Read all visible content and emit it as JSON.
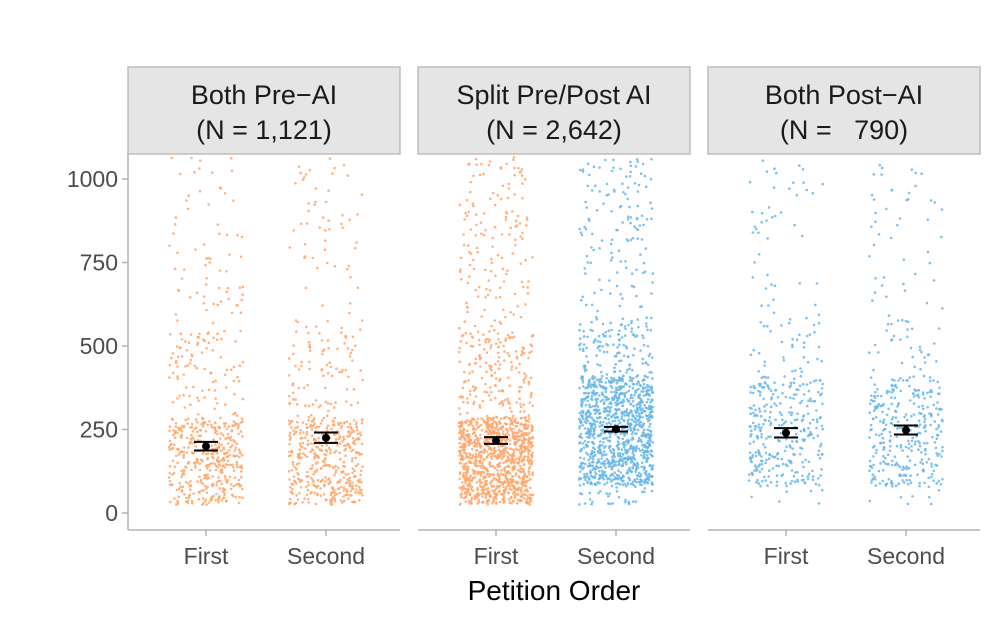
{
  "chart_data": {
    "type": "scatter",
    "subtype": "jittered strip plot with mean and error bars, faceted",
    "x_title": "Petition Order",
    "y_title": "",
    "ylim": [
      0,
      1070
    ],
    "y_ticks": [
      "0",
      "250",
      "500",
      "750",
      "1000"
    ],
    "y_tick_values": [
      0,
      250,
      500,
      750,
      1000
    ],
    "grid": false,
    "legend": "none",
    "colors": {
      "pre_ai": "#FFA76B",
      "post_ai": "#69B7E8",
      "mean": "#000000"
    },
    "facets": [
      {
        "title_line1": "Both Pre−AI",
        "title_line2": "(N = 1,121)",
        "groups": [
          {
            "label": "First",
            "color_key": "pre_ai",
            "mean": 200,
            "ci_low": 187,
            "ci_high": 213,
            "n_points": 560,
            "spread": "low"
          },
          {
            "label": "Second",
            "color_key": "pre_ai",
            "mean": 225,
            "ci_low": 210,
            "ci_high": 241,
            "n_points": 560,
            "spread": "low"
          }
        ]
      },
      {
        "title_line1": "Split Pre/Post AI",
        "title_line2": "(N = 2,642)",
        "groups": [
          {
            "label": "First",
            "color_key": "pre_ai",
            "mean": 217,
            "ci_low": 207,
            "ci_high": 227,
            "n_points": 1320,
            "spread": "low"
          },
          {
            "label": "Second",
            "color_key": "post_ai",
            "mean": 251,
            "ci_low": 244,
            "ci_high": 258,
            "n_points": 1320,
            "spread": "mid"
          }
        ]
      },
      {
        "title_line1": "Both Post−AI",
        "title_line2": "(N =   790)",
        "groups": [
          {
            "label": "First",
            "color_key": "post_ai",
            "mean": 240,
            "ci_low": 226,
            "ci_high": 254,
            "n_points": 395,
            "spread": "mid"
          },
          {
            "label": "Second",
            "color_key": "post_ai",
            "mean": 248,
            "ci_low": 235,
            "ci_high": 262,
            "n_points": 395,
            "spread": "mid"
          }
        ]
      }
    ]
  }
}
